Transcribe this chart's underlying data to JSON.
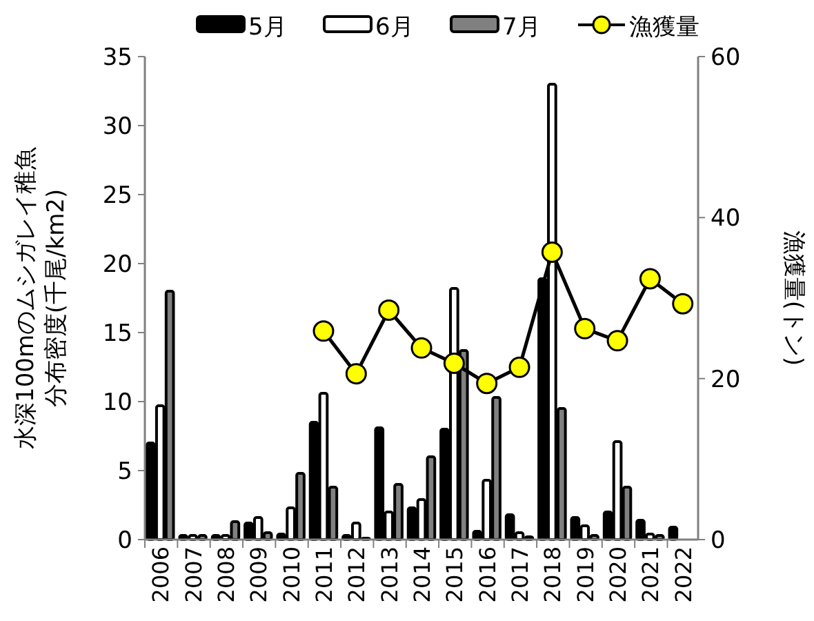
{
  "chart_data": {
    "type": "bar",
    "ylabel": "水深100mのムシガレイ稚魚分布密度(千尾/km2)",
    "y2label": "漁獲量(トン)",
    "categories": [
      "2006",
      "2007",
      "2008",
      "2009",
      "2010",
      "2011",
      "2012",
      "2013",
      "2014",
      "2015",
      "2016",
      "2017",
      "2018",
      "2019",
      "2020",
      "2021",
      "2022"
    ],
    "series": [
      {
        "name": "5月",
        "color": "#000000",
        "values": [
          7.0,
          0.3,
          0.3,
          1.2,
          0.4,
          8.5,
          0.3,
          8.1,
          2.3,
          8.0,
          0.6,
          1.8,
          18.9,
          1.6,
          2.0,
          1.4,
          0.9
        ]
      },
      {
        "name": "6月",
        "color": "#ffffff",
        "values": [
          9.7,
          0.3,
          0.3,
          1.6,
          2.3,
          10.6,
          1.2,
          2.0,
          2.9,
          18.2,
          4.3,
          0.5,
          33.0,
          1.0,
          7.1,
          0.4,
          null
        ]
      },
      {
        "name": "7月",
        "color": "#808080",
        "values": [
          18.0,
          0.3,
          1.3,
          0.5,
          4.8,
          3.8,
          0.1,
          4.0,
          6.0,
          13.7,
          10.3,
          0.2,
          9.5,
          0.3,
          3.8,
          0.3,
          null
        ]
      },
      {
        "name": "漁獲量",
        "type": "line",
        "axis": "y2",
        "color": "#ffff00",
        "marker": "circle",
        "values": [
          null,
          null,
          null,
          null,
          null,
          25.9,
          20.6,
          28.5,
          23.8,
          21.9,
          19.4,
          21.4,
          35.7,
          26.2,
          24.7,
          32.4,
          29.3
        ]
      }
    ],
    "ylim": [
      0,
      35
    ],
    "yticks": [
      0,
      5,
      10,
      15,
      20,
      25,
      30,
      35
    ],
    "y2lim": [
      0,
      60
    ],
    "y2ticks": [
      0,
      20,
      40,
      60
    ],
    "grid": false,
    "legend": "top"
  }
}
